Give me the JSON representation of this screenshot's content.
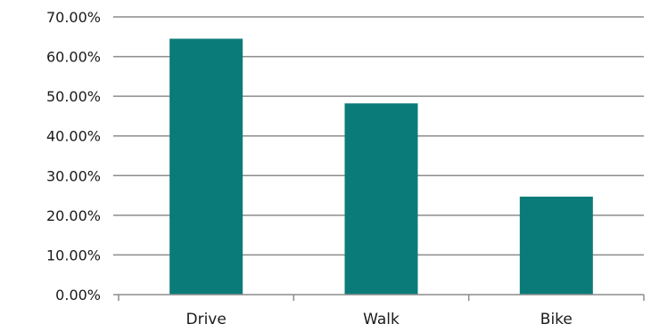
{
  "chart_data": {
    "type": "bar",
    "title": "",
    "xlabel": "",
    "ylabel": "",
    "categories": [
      "Drive",
      "Walk",
      "Bike"
    ],
    "values": [
      64.5,
      48.2,
      24.7
    ],
    "value_format": "percent",
    "ylim": [
      0,
      70
    ],
    "y_ticks": [
      "0.00%",
      "10.00%",
      "20.00%",
      "30.00%",
      "40.00%",
      "50.00%",
      "60.00%",
      "70.00%"
    ],
    "grid": true,
    "legend": "none",
    "colors": {
      "bar": "#0b7b7a",
      "grid": "#8c8c8c",
      "axis": "#8c8c8c"
    }
  }
}
